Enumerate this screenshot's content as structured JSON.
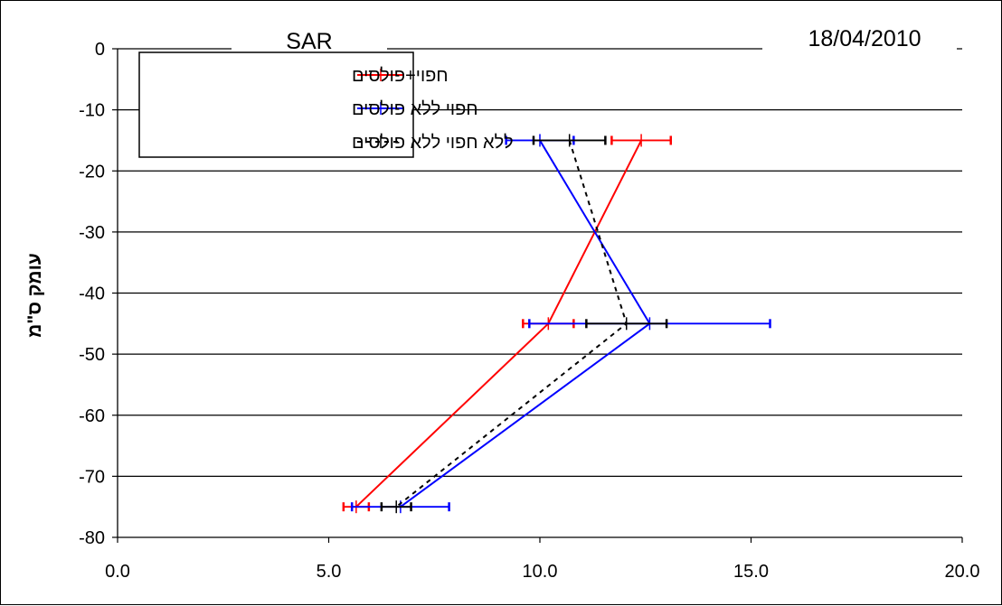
{
  "chart_data": {
    "type": "line",
    "title": "SAR",
    "date_label": "18/04/2010",
    "ylabel": "עומק ס\"מ",
    "xlabel": "",
    "xlim": [
      0,
      20
    ],
    "ylim": [
      -80,
      0
    ],
    "x_ticks": [
      "0.0",
      "5.0",
      "10.0",
      "15.0",
      "20.0"
    ],
    "y_ticks": [
      "0",
      "-10",
      "-20",
      "-30",
      "-40",
      "-50",
      "-60",
      "-70",
      "-80"
    ],
    "x_tick_values": [
      0,
      5,
      10,
      15,
      20
    ],
    "y_tick_values": [
      0,
      -10,
      -20,
      -30,
      -40,
      -50,
      -60,
      -70,
      -80
    ],
    "grid": "horizontal",
    "legend_position": "top-left",
    "series": [
      {
        "name": "חפוי+פולסים",
        "color": "#ff0000",
        "dash": "solid",
        "points": [
          {
            "x": 12.4,
            "y": -15,
            "xerr": 0.7
          },
          {
            "x": 10.2,
            "y": -45,
            "xerr": 0.6
          },
          {
            "x": 5.65,
            "y": -75,
            "xerr": 0.3
          }
        ]
      },
      {
        "name": "חפוי ללא פולסים",
        "color": "#0000ff",
        "dash": "solid",
        "points": [
          {
            "x": 10.0,
            "y": -15,
            "xerr": 0.8
          },
          {
            "x": 12.6,
            "y": -45,
            "xerr": 2.85
          },
          {
            "x": 6.7,
            "y": -75,
            "xerr": 1.15
          }
        ]
      },
      {
        "name": "ללא חפוי ללא פולסים",
        "color": "#000000",
        "dash": "dashed",
        "points": [
          {
            "x": 10.7,
            "y": -15,
            "xerr": 0.85
          },
          {
            "x": 12.05,
            "y": -45,
            "xerr": 0.95
          },
          {
            "x": 6.6,
            "y": -75,
            "xerr": 0.35
          }
        ]
      }
    ]
  }
}
